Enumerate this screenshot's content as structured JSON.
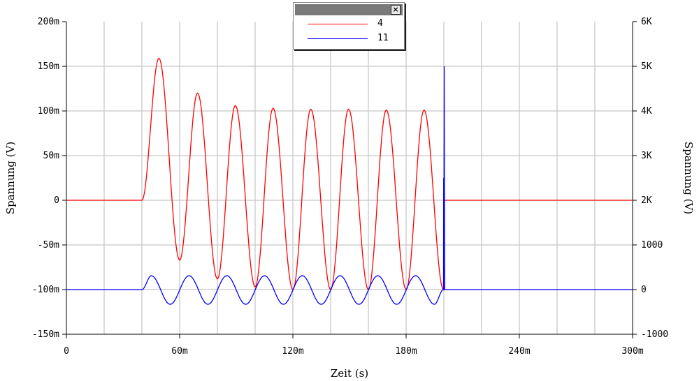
{
  "chart_data": {
    "type": "line",
    "xlabel": "Zeit (s)",
    "ylabel": "Spannung (V)",
    "y2label": "Spannung (V)",
    "xlim": [
      0,
      300
    ],
    "ylim": [
      -150,
      200
    ],
    "y2lim": [
      -1000,
      6000
    ],
    "x_unit": "ms",
    "y_unit": "mV",
    "grid": true,
    "legend_placement": "top-center",
    "x_ticks": [
      {
        "v": 0,
        "label": "0"
      },
      {
        "v": 60,
        "label": "60m"
      },
      {
        "v": 120,
        "label": "120m"
      },
      {
        "v": 180,
        "label": "180m"
      },
      {
        "v": 240,
        "label": "240m"
      },
      {
        "v": 300,
        "label": "300m"
      }
    ],
    "x_grid": [
      20,
      40,
      60,
      80,
      100,
      120,
      140,
      160,
      180,
      200,
      220,
      240,
      260,
      280
    ],
    "y_ticks": [
      {
        "v": 200,
        "label": "200m"
      },
      {
        "v": 150,
        "label": "150m"
      },
      {
        "v": 100,
        "label": "100m"
      },
      {
        "v": 50,
        "label": "50m"
      },
      {
        "v": 0,
        "label": "0"
      },
      {
        "v": -50,
        "label": "-50m"
      },
      {
        "v": -100,
        "label": "-100m"
      },
      {
        "v": -150,
        "label": "-150m"
      }
    ],
    "y2_ticks": [
      {
        "v": 6000,
        "label": "6K"
      },
      {
        "v": 5000,
        "label": "5K"
      },
      {
        "v": 4000,
        "label": "4K"
      },
      {
        "v": 3000,
        "label": "3K"
      },
      {
        "v": 2000,
        "label": "2K"
      },
      {
        "v": 1000,
        "label": "1000"
      },
      {
        "v": 0,
        "label": "0"
      },
      {
        "v": -1000,
        "label": "-1000"
      }
    ],
    "series": [
      {
        "name": "4",
        "color": "#ff0000",
        "axis": "left",
        "points": [
          [
            0,
            0
          ],
          [
            40,
            0
          ],
          [
            49,
            159
          ],
          [
            60,
            -67
          ],
          [
            69.5,
            120
          ],
          [
            80,
            -88
          ],
          [
            89.5,
            106
          ],
          [
            100,
            -97
          ],
          [
            109.5,
            103
          ],
          [
            120,
            -100
          ],
          [
            129.5,
            102
          ],
          [
            140,
            -100
          ],
          [
            149.5,
            102
          ],
          [
            160,
            -100
          ],
          [
            169.5,
            101
          ],
          [
            180,
            -100
          ],
          [
            189.5,
            101
          ],
          [
            199.8,
            -100
          ],
          [
            200.3,
            0
          ],
          [
            300,
            0
          ]
        ]
      },
      {
        "name": "11",
        "color": "#0000ff",
        "axis": "right",
        "points": [
          [
            0,
            0
          ],
          [
            40,
            0
          ],
          [
            45,
            310
          ],
          [
            55,
            -330
          ],
          [
            65,
            310
          ],
          [
            75,
            -330
          ],
          [
            85,
            310
          ],
          [
            95,
            -330
          ],
          [
            105,
            310
          ],
          [
            115,
            -330
          ],
          [
            125,
            310
          ],
          [
            135,
            -330
          ],
          [
            145,
            310
          ],
          [
            155,
            -330
          ],
          [
            165,
            310
          ],
          [
            175,
            -330
          ],
          [
            185,
            310
          ],
          [
            195,
            -330
          ],
          [
            199.8,
            0
          ],
          [
            199.9,
            2500
          ],
          [
            200,
            0
          ],
          [
            200.2,
            5000
          ],
          [
            200.4,
            0
          ],
          [
            300,
            0
          ]
        ]
      }
    ]
  },
  "legend": {
    "close_label": "×"
  }
}
